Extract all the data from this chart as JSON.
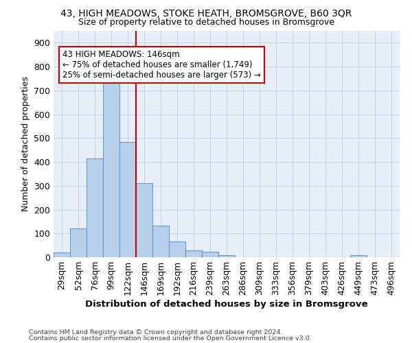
{
  "title": "43, HIGH MEADOWS, STOKE HEATH, BROMSGROVE, B60 3QR",
  "subtitle": "Size of property relative to detached houses in Bromsgrove",
  "xlabel": "Distribution of detached houses by size in Bromsgrove",
  "ylabel": "Number of detached properties",
  "categories": [
    "29sqm",
    "52sqm",
    "76sqm",
    "99sqm",
    "122sqm",
    "146sqm",
    "169sqm",
    "192sqm",
    "216sqm",
    "239sqm",
    "263sqm",
    "286sqm",
    "309sqm",
    "333sqm",
    "356sqm",
    "379sqm",
    "403sqm",
    "426sqm",
    "449sqm",
    "473sqm",
    "496sqm"
  ],
  "values": [
    20,
    120,
    415,
    730,
    485,
    310,
    133,
    65,
    30,
    23,
    10,
    0,
    0,
    0,
    0,
    0,
    0,
    0,
    8,
    0,
    0
  ],
  "bar_color": "#b8d0ea",
  "bar_edge_color": "#6699cc",
  "highlight_index": 5,
  "highlight_line_color": "#cc0000",
  "annotation_text": "43 HIGH MEADOWS: 146sqm\n← 75% of detached houses are smaller (1,749)\n25% of semi-detached houses are larger (573) →",
  "annotation_box_color": "#ffffff",
  "annotation_box_edge": "#cc0000",
  "ylim": [
    0,
    950
  ],
  "yticks": [
    0,
    100,
    200,
    300,
    400,
    500,
    600,
    700,
    800,
    900
  ],
  "grid_color": "#c8d4e8",
  "background_color": "#e8eef8",
  "footer_line1": "Contains HM Land Registry data © Crown copyright and database right 2024.",
  "footer_line2": "Contains public sector information licensed under the Open Government Licence v3.0."
}
